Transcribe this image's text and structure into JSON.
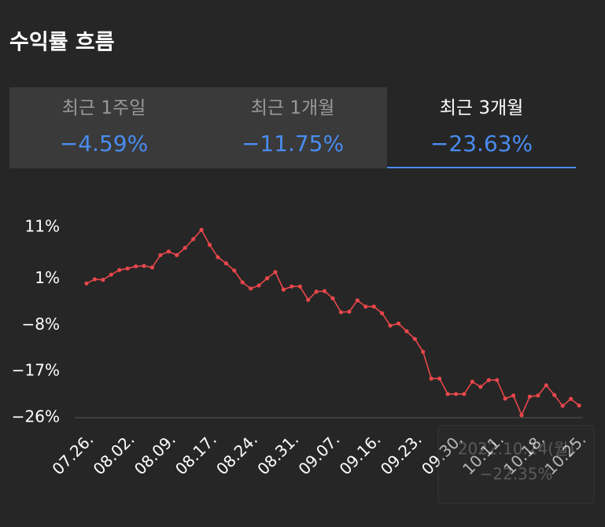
{
  "header": {
    "title": "수익률 흐름"
  },
  "tabs": [
    {
      "label": "최근 1주일",
      "value": "−4.59%"
    },
    {
      "label": "최근 1개월",
      "value": "−11.75%"
    },
    {
      "label": "최근 3개월",
      "value": "−23.63%"
    }
  ],
  "tooltip": {
    "date": "2022.10.24(월)",
    "value": "−22.35%"
  },
  "chart_data": {
    "type": "line",
    "color": "#e8474a",
    "categories": [
      "07.26.",
      null,
      null,
      null,
      null,
      "08.02.",
      null,
      null,
      null,
      null,
      "08.09.",
      null,
      null,
      null,
      null,
      "08.17.",
      null,
      null,
      null,
      null,
      "08.24.",
      null,
      null,
      null,
      null,
      "08.31.",
      null,
      null,
      null,
      null,
      "09.07.",
      null,
      null,
      null,
      null,
      "09.16.",
      null,
      null,
      null,
      null,
      "09.23.",
      null,
      null,
      null,
      null,
      "09.30.",
      null,
      null,
      null,
      null,
      "10.11.",
      null,
      null,
      null,
      null,
      "10.18.",
      null,
      null,
      null,
      null,
      "10.25."
    ],
    "values": [
      0.1,
      0.9,
      0.8,
      1.8,
      2.7,
      3.0,
      3.4,
      3.5,
      3.2,
      5.6,
      6.3,
      5.6,
      7.0,
      8.7,
      10.5,
      7.6,
      5.2,
      4.0,
      2.6,
      0.3,
      -0.9,
      -0.3,
      1.1,
      2.3,
      -1.1,
      -0.5,
      -0.5,
      -3.1,
      -1.5,
      -1.4,
      -2.8,
      -5.5,
      -5.4,
      -3.2,
      -4.4,
      -4.4,
      -5.7,
      -8.1,
      -7.7,
      -9.2,
      -10.7,
      -13.2,
      -18.4,
      -18.4,
      -21.4,
      -21.4,
      -21.4,
      -19.0,
      -20.0,
      -18.7,
      -18.7,
      -22.3,
      -21.7,
      -25.5,
      -21.9,
      -21.7,
      -19.7,
      -21.6,
      -23.7,
      -22.35,
      -23.63
    ],
    "ylim": [
      -26,
      11
    ],
    "yticks": [
      {
        "value": 11,
        "label": "11%"
      },
      {
        "value": 1,
        "label": "1%"
      },
      {
        "value": -8,
        "label": "−8%"
      },
      {
        "value": -17,
        "label": "−17%"
      },
      {
        "value": -26,
        "label": "−26%"
      }
    ]
  }
}
